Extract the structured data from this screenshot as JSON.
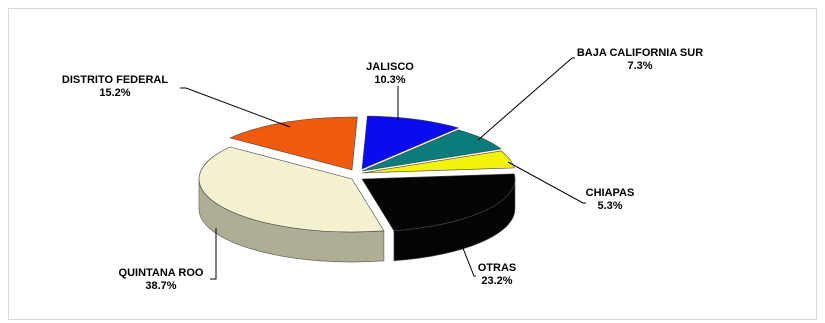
{
  "chart_data": {
    "type": "pie",
    "title": "",
    "three_d": true,
    "legend": "none",
    "slices": [
      {
        "label": "JALISCO",
        "value": 10.3,
        "value_label": "10.3%",
        "color": "#0B0BF0"
      },
      {
        "label": "BAJA CALIFORNIA SUR",
        "value": 7.3,
        "value_label": "7.3%",
        "color": "#0B7B7B"
      },
      {
        "label": "CHIAPAS",
        "value": 5.3,
        "value_label": "5.3%",
        "color": "#F2F20A"
      },
      {
        "label": "OTRAS",
        "value": 23.2,
        "value_label": "23.2%",
        "color": "#050505"
      },
      {
        "label": "QUINTANA ROO",
        "value": 38.7,
        "value_label": "38.7%",
        "color": "#F3F1CF"
      },
      {
        "label": "DISTRITO FEDERAL",
        "value": 15.2,
        "value_label": "15.2%",
        "color": "#EF5A0E"
      }
    ]
  }
}
